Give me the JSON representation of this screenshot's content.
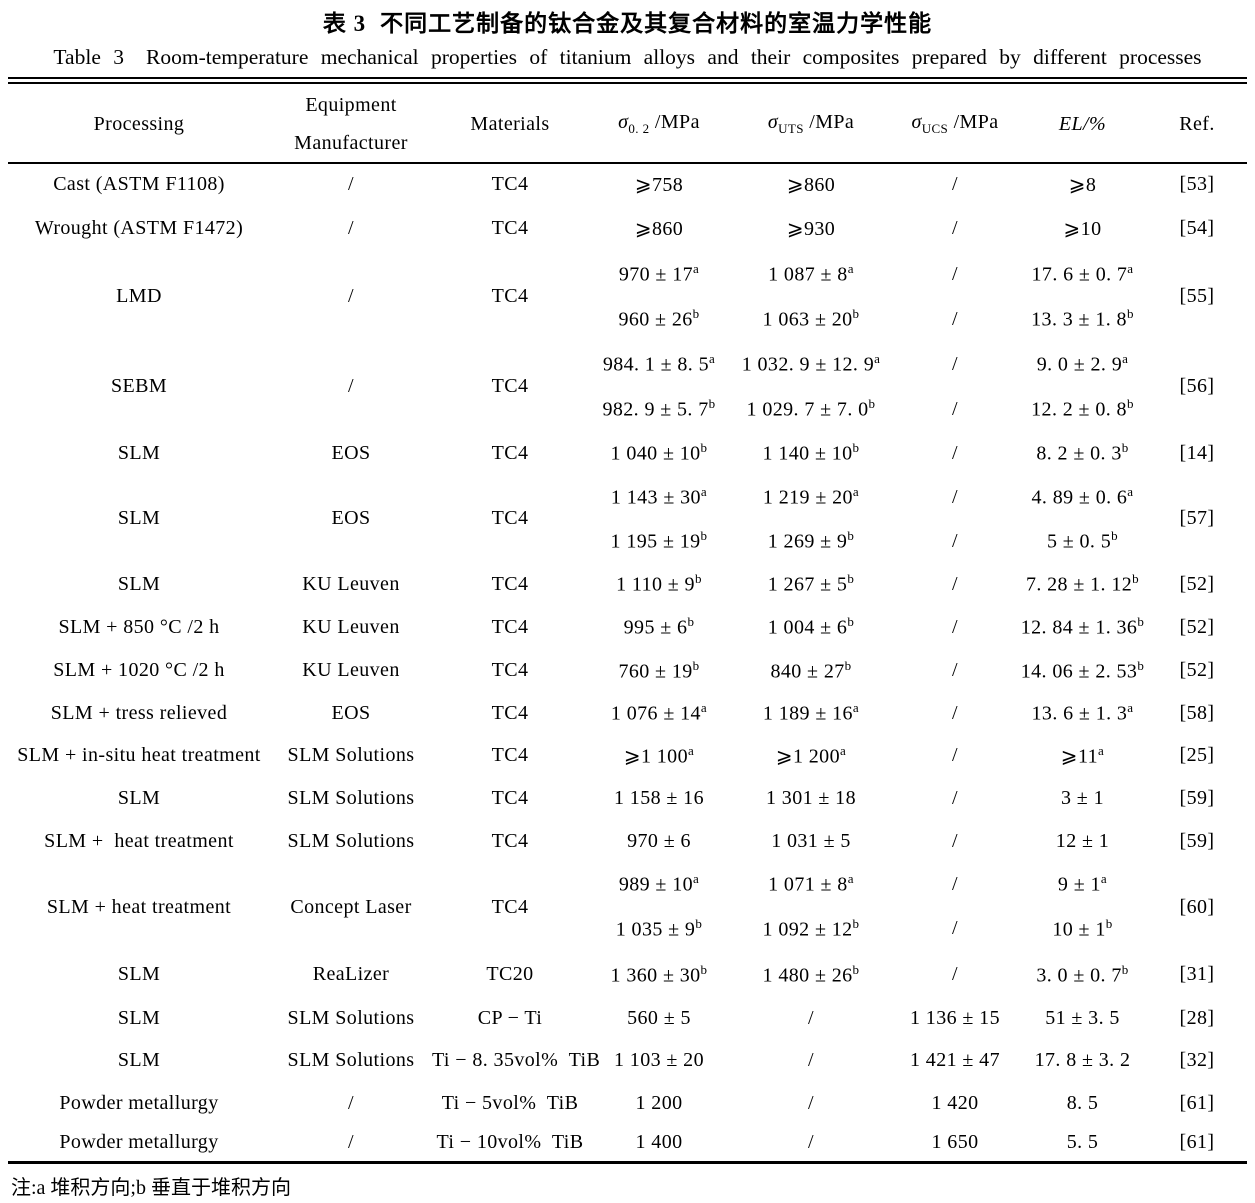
{
  "title_cn": {
    "label": "表 3",
    "text": "不同工艺制备的钛合金及其复合材料的室温力学性能"
  },
  "title_en": {
    "label": "Table 3",
    "text": "Room-temperature mechanical properties of titanium alloys and their composites prepared by different processes"
  },
  "note": "注:a 堆积方向;b 垂直于堆积方向",
  "table": {
    "headers": [
      "Processing",
      "Equipment\nManufacturer",
      "Materials",
      "*σ*~0. 2~ /MPa",
      "*σ*~UTS~ /MPa",
      "*σ*~UCS~ /MPa",
      "*EL/%*",
      "Ref."
    ],
    "header_names": [
      "processing",
      "manufacturer",
      "materials",
      "sigma02",
      "sigma-uts",
      "sigma-ucs",
      "elongation",
      "reference"
    ],
    "rows": [
      {
        "processing": "Cast (ASTM F1108)",
        "manufacturer": "/",
        "materials": "TC4",
        "ref": "[53]",
        "sub": [
          {
            "s02": "⩾758",
            "uts": "⩾860",
            "ucs": "/",
            "el": "⩾8"
          }
        ]
      },
      {
        "processing": "Wrought (ASTM F1472)",
        "manufacturer": "/",
        "materials": "TC4",
        "ref": "[54]",
        "sub": [
          {
            "s02": "⩾860",
            "uts": "⩾930",
            "ucs": "/",
            "el": "⩾10"
          }
        ]
      },
      {
        "processing": "LMD",
        "manufacturer": "/",
        "materials": "TC4",
        "ref": "[55]",
        "sub": [
          {
            "s02": "970 ± 17^a",
            "uts": "1 087 ± 8^a",
            "ucs": "/",
            "el": "17. 6 ± 0. 7^a"
          },
          {
            "s02": "960 ± 26^b",
            "uts": "1 063 ± 20^b",
            "ucs": "/",
            "el": "13. 3 ± 1. 8^b"
          }
        ]
      },
      {
        "processing": "SEBM",
        "manufacturer": "/",
        "materials": "TC4",
        "ref": "[56]",
        "sub": [
          {
            "s02": "984. 1 ± 8. 5^a",
            "uts": "1 032. 9 ± 12. 9^a",
            "ucs": "/",
            "el": "9. 0 ± 2. 9^a"
          },
          {
            "s02": "982. 9 ± 5. 7^b",
            "uts": "1 029. 7 ± 7. 0^b",
            "ucs": "/",
            "el": "12. 2 ± 0. 8^b"
          }
        ]
      },
      {
        "processing": "SLM",
        "manufacturer": "EOS",
        "materials": "TC4",
        "ref": "[14]",
        "sub": [
          {
            "s02": "1 040 ± 10^b",
            "uts": "1 140 ± 10^b",
            "ucs": "/",
            "el": "8. 2 ± 0. 3^b"
          }
        ]
      },
      {
        "processing": "SLM",
        "manufacturer": "EOS",
        "materials": "TC4",
        "ref": "[57]",
        "sub": [
          {
            "s02": "1 143 ± 30^a",
            "uts": "1 219 ± 20^a",
            "ucs": "/",
            "el": "4. 89 ± 0. 6^a"
          },
          {
            "s02": "1 195 ± 19^b",
            "uts": "1 269 ± 9^b",
            "ucs": "/",
            "el": "5 ± 0. 5^b"
          }
        ]
      },
      {
        "processing": "SLM",
        "manufacturer": "KU Leuven",
        "materials": "TC4",
        "ref": "[52]",
        "sub": [
          {
            "s02": "1 110 ± 9^b",
            "uts": "1 267 ± 5^b",
            "ucs": "/",
            "el": "7. 28 ± 1. 12^b"
          }
        ]
      },
      {
        "processing": "SLM + 850 °C /2 h",
        "manufacturer": "KU Leuven",
        "materials": "TC4",
        "ref": "[52]",
        "sub": [
          {
            "s02": "995 ± 6^b",
            "uts": "1 004 ± 6^b",
            "ucs": "/",
            "el": "12. 84 ± 1. 36^b"
          }
        ]
      },
      {
        "processing": "SLM + 1020 °C /2 h",
        "manufacturer": "KU Leuven",
        "materials": "TC4",
        "ref": "[52]",
        "sub": [
          {
            "s02": "760 ± 19^b",
            "uts": "840 ± 27^b",
            "ucs": "/",
            "el": "14. 06 ± 2. 53^b"
          }
        ]
      },
      {
        "processing": "SLM + tress relieved",
        "manufacturer": "EOS",
        "materials": "TC4",
        "ref": "[58]",
        "sub": [
          {
            "s02": "1 076 ± 14^a",
            "uts": "1 189 ± 16^a",
            "ucs": "/",
            "el": "13. 6 ± 1. 3^a"
          }
        ]
      },
      {
        "processing": "SLM + in-situ heat treatment",
        "manufacturer": "SLM Solutions",
        "materials": "TC4",
        "ref": "[25]",
        "sub": [
          {
            "s02": "⩾1 100^a",
            "uts": "⩾1 200^a",
            "ucs": "/",
            "el": "⩾11^a"
          }
        ]
      },
      {
        "processing": "SLM",
        "manufacturer": "SLM Solutions",
        "materials": "TC4",
        "ref": "[59]",
        "sub": [
          {
            "s02": "1 158 ± 16",
            "uts": "1 301 ± 18",
            "ucs": "/",
            "el": "3 ± 1"
          }
        ]
      },
      {
        "processing": "SLM +  heat treatment",
        "manufacturer": "SLM Solutions",
        "materials": "TC4",
        "ref": "[59]",
        "sub": [
          {
            "s02": "970 ± 6",
            "uts": "1 031 ± 5",
            "ucs": "/",
            "el": "12 ± 1"
          }
        ]
      },
      {
        "processing": "SLM + heat treatment",
        "manufacturer": "Concept Laser",
        "materials": "TC4",
        "ref": "[60]",
        "sub": [
          {
            "s02": "989 ± 10^a",
            "uts": "1 071 ± 8^a",
            "ucs": "/",
            "el": "9 ± 1^a"
          },
          {
            "s02": "1 035 ± 9^b",
            "uts": "1 092 ± 12^b",
            "ucs": "/",
            "el": "10 ± 1^b"
          }
        ]
      },
      {
        "processing": "SLM",
        "manufacturer": "ReaLizer",
        "materials": "TC20",
        "ref": "[31]",
        "sub": [
          {
            "s02": "1 360 ± 30^b",
            "uts": "1 480 ± 26^b",
            "ucs": "/",
            "el": "3. 0 ± 0. 7^b"
          }
        ]
      },
      {
        "processing": "SLM",
        "manufacturer": "SLM Solutions",
        "materials": "CP − Ti",
        "ref": "[28]",
        "sub": [
          {
            "s02": "560 ± 5",
            "uts": "/",
            "ucs": "1 136 ± 15",
            "el": "51 ± 3. 5"
          }
        ]
      },
      {
        "processing": "SLM",
        "manufacturer": "SLM Solutions",
        "materials": "Ti − 8. 35vol%  TiB",
        "ref": "[32]",
        "sub": [
          {
            "s02": "1 103 ± 20",
            "uts": "/",
            "ucs": "1 421 ± 47",
            "el": "17. 8 ± 3. 2"
          }
        ]
      },
      {
        "processing": "Powder metallurgy",
        "manufacturer": "/",
        "materials": "Ti − 5vol%  TiB",
        "ref": "[61]",
        "sub": [
          {
            "s02": "1 200",
            "uts": "/",
            "ucs": "1 420",
            "el": "8. 5"
          }
        ]
      },
      {
        "processing": "Powder metallurgy",
        "manufacturer": "/",
        "materials": "Ti − 10vol%  TiB",
        "ref": "[61]",
        "sub": [
          {
            "s02": "1 400",
            "uts": "/",
            "ucs": "1 650",
            "el": "5. 5"
          }
        ]
      }
    ]
  }
}
